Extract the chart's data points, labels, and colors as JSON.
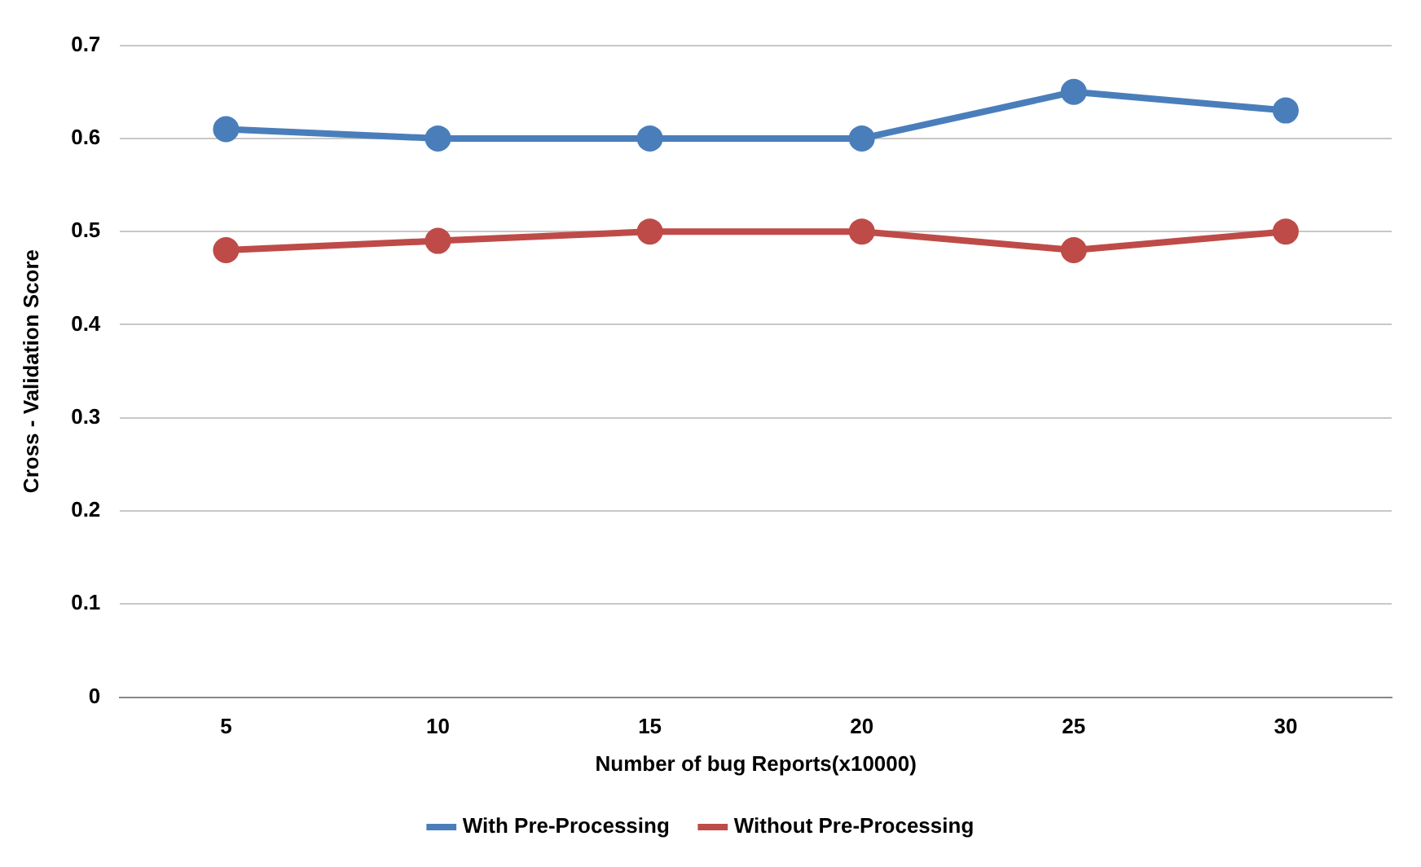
{
  "chart_data": {
    "type": "line",
    "xlabel": "Number of bug Reports(x10000)",
    "ylabel": "Cross - Validation Score",
    "categories": [
      "5",
      "10",
      "15",
      "20",
      "25",
      "30"
    ],
    "series": [
      {
        "name": "With Pre-Processing",
        "color": "#4a7ebb",
        "values": [
          0.61,
          0.6,
          0.6,
          0.6,
          0.65,
          0.63
        ]
      },
      {
        "name": "Without Pre-Processing",
        "color": "#be4b48",
        "values": [
          0.48,
          0.49,
          0.5,
          0.5,
          0.48,
          0.5
        ]
      }
    ],
    "ylim": [
      0,
      0.7
    ],
    "yticks": [
      0,
      0.1,
      0.2,
      0.3,
      0.4,
      0.5,
      0.6,
      0.7
    ],
    "grid": "y",
    "legend": "bottom",
    "marker": "circle",
    "line_style": "solid"
  }
}
